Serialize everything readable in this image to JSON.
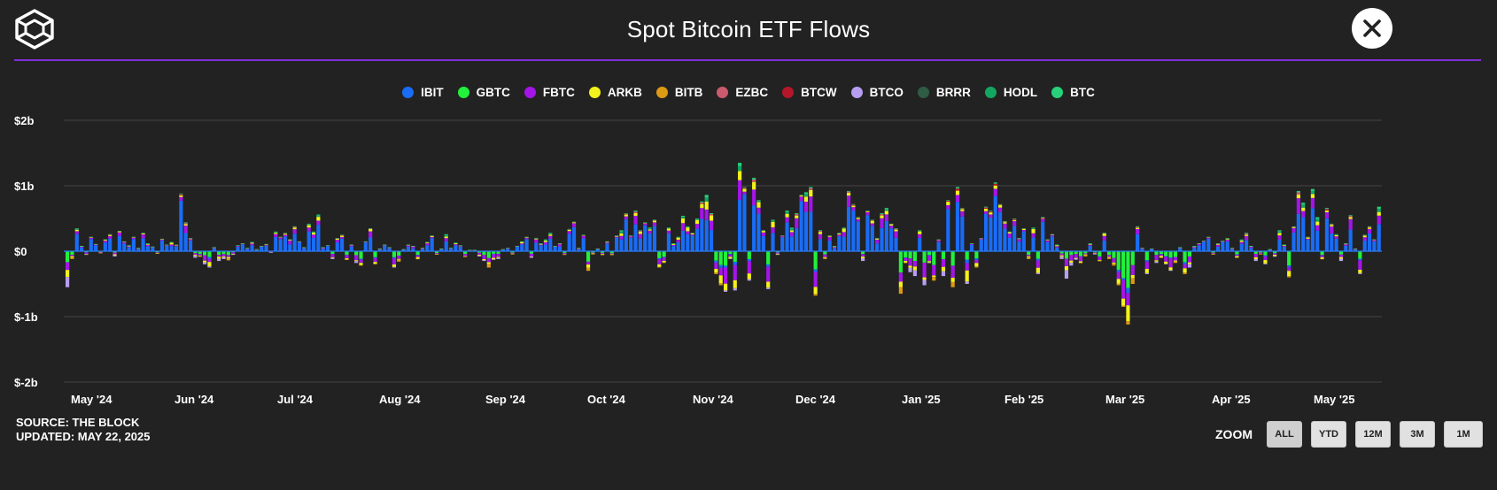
{
  "header": {
    "title": "Spot Bitcoin ETF Flows",
    "logo_icon": "the-block-cube-logo",
    "close_icon": "close-icon"
  },
  "footer": {
    "source": "SOURCE: THE BLOCK",
    "updated": "UPDATED: MAY 22, 2025"
  },
  "zoom": {
    "label": "ZOOM",
    "buttons": [
      "ALL",
      "YTD",
      "12M",
      "3M",
      "1M"
    ],
    "selected": "ALL"
  },
  "colors": {
    "background": "#222222",
    "divider": "#7e2fd6",
    "grid": "#444444",
    "zero_line": "#2d7df6"
  },
  "chart_data": {
    "type": "bar",
    "stacked": true,
    "title": "Spot Bitcoin ETF Flows",
    "xlabel": "",
    "ylabel": "",
    "unit": "USD billions",
    "ylim": [
      -2,
      2
    ],
    "yticks": [
      {
        "value": 2,
        "label": "$2b"
      },
      {
        "value": 1,
        "label": "$1b"
      },
      {
        "value": 0,
        "label": "$0"
      },
      {
        "value": -1,
        "label": "$-1b"
      },
      {
        "value": -2,
        "label": "$-2b"
      }
    ],
    "xticks": [
      "May '24",
      "Jun '24",
      "Jul '24",
      "Aug '24",
      "Sep '24",
      "Oct '24",
      "Nov '24",
      "Dec '24",
      "Jan '25",
      "Feb '25",
      "Mar '25",
      "Apr '25",
      "May '25"
    ],
    "legend_position": "top-center",
    "series": [
      {
        "name": "IBIT",
        "color": "#1a6cf5"
      },
      {
        "name": "GBTC",
        "color": "#21f03c"
      },
      {
        "name": "FBTC",
        "color": "#a514e8"
      },
      {
        "name": "ARKB",
        "color": "#f2f21c"
      },
      {
        "name": "BITB",
        "color": "#dd9a14"
      },
      {
        "name": "EZBC",
        "color": "#cc5a6e"
      },
      {
        "name": "BTCW",
        "color": "#b5162a"
      },
      {
        "name": "BTCO",
        "color": "#b79ef0"
      },
      {
        "name": "BRRR",
        "color": "#2f5c44"
      },
      {
        "name": "HODL",
        "color": "#14a661"
      },
      {
        "name": "BTC",
        "color": "#27d17a"
      }
    ],
    "spans": [
      {
        "start": 0,
        "end": 22,
        "range": [
          -0.55,
          0.38
        ]
      },
      {
        "start": 22,
        "end": 44,
        "range": [
          -0.25,
          0.88
        ]
      },
      {
        "start": 44,
        "end": 66,
        "range": [
          -0.25,
          0.58
        ]
      },
      {
        "start": 66,
        "end": 88,
        "range": [
          -0.3,
          0.28
        ]
      },
      {
        "start": 88,
        "end": 110,
        "range": [
          -0.25,
          0.45
        ]
      },
      {
        "start": 110,
        "end": 132,
        "range": [
          -0.3,
          0.62
        ]
      },
      {
        "start": 132,
        "end": 154,
        "range": [
          -0.65,
          1.35
        ]
      },
      {
        "start": 154,
        "end": 176,
        "range": [
          -0.7,
          0.98
        ]
      },
      {
        "start": 176,
        "end": 198,
        "range": [
          -0.65,
          1.05
        ]
      },
      {
        "start": 198,
        "end": 220,
        "range": [
          -0.5,
          0.58
        ]
      },
      {
        "start": 220,
        "end": 242,
        "range": [
          -1.12,
          0.38
        ]
      },
      {
        "start": 242,
        "end": 264,
        "range": [
          -0.45,
          0.95
        ]
      },
      {
        "start": 264,
        "end": 278,
        "range": [
          -0.4,
          0.68
        ]
      }
    ],
    "daily_net_flows": [
      -0.55,
      -0.12,
      0.35,
      0.08,
      -0.05,
      0.22,
      0.11,
      -0.03,
      0.18,
      0.26,
      -0.08,
      0.31,
      0.15,
      0.09,
      0.22,
      0.05,
      0.28,
      0.12,
      0.07,
      -0.04,
      0.19,
      0.1,
      0.14,
      0.1,
      0.88,
      0.44,
      0.2,
      -0.1,
      -0.08,
      -0.2,
      -0.25,
      0.06,
      -0.15,
      -0.12,
      -0.14,
      -0.05,
      0.09,
      0.12,
      0.05,
      0.14,
      0.03,
      0.08,
      0.11,
      -0.02,
      0.3,
      0.22,
      0.28,
      0.18,
      0.38,
      0.15,
      0.06,
      0.42,
      0.3,
      0.56,
      0.06,
      0.09,
      -0.12,
      0.2,
      0.25,
      -0.13,
      0.1,
      -0.18,
      -0.22,
      0.15,
      0.35,
      -0.2,
      0.04,
      0.1,
      0.06,
      -0.25,
      -0.16,
      0.03,
      0.1,
      0.08,
      -0.12,
      0.05,
      0.14,
      0.24,
      -0.05,
      0.04,
      0.26,
      0.05,
      0.13,
      0.09,
      -0.09,
      0.02,
      0.02,
      -0.08,
      -0.15,
      -0.25,
      -0.13,
      -0.12,
      0.03,
      0.05,
      -0.05,
      0.08,
      0.15,
      0.22,
      -0.1,
      0.2,
      0.12,
      0.18,
      0.28,
      0.08,
      0.12,
      -0.05,
      0.34,
      0.45,
      0.05,
      0.25,
      -0.3,
      -0.05,
      0.04,
      -0.06,
      0.15,
      -0.06,
      0.24,
      0.32,
      0.58,
      0.24,
      0.62,
      0.32,
      0.44,
      0.36,
      0.48,
      -0.25,
      -0.18,
      0.36,
      0.12,
      0.22,
      0.54,
      0.38,
      0.28,
      0.5,
      0.76,
      0.86,
      0.58,
      -0.35,
      -0.52,
      -0.62,
      -0.12,
      -0.6,
      1.35,
      0.98,
      -0.45,
      1.12,
      0.78,
      0.32,
      -0.58,
      0.48,
      -0.05,
      0.24,
      0.62,
      0.36,
      0.58,
      0.86,
      0.9,
      0.98,
      -0.68,
      0.32,
      -0.12,
      0.24,
      0.08,
      0.28,
      0.36,
      0.92,
      0.72,
      0.52,
      -0.15,
      0.62,
      0.48,
      0.2,
      0.58,
      0.66,
      0.42,
      0.35,
      -0.65,
      -0.18,
      -0.32,
      -0.38,
      0.32,
      -0.52,
      -0.18,
      -0.45,
      0.18,
      -0.38,
      0.78,
      -0.55,
      0.98,
      0.66,
      -0.5,
      0.12,
      -0.25,
      0.2,
      0.68,
      0.62,
      1.05,
      0.72,
      0.46,
      0.3,
      0.5,
      0.2,
      0.35,
      -0.12,
      0.36,
      -0.35,
      0.52,
      0.18,
      0.26,
      0.1,
      -0.12,
      -0.42,
      -0.22,
      -0.13,
      -0.18,
      -0.08,
      0.12,
      -0.05,
      -0.15,
      0.28,
      -0.12,
      -0.22,
      -0.52,
      -0.85,
      -1.12,
      -0.5,
      0.38,
      0.05,
      -0.35,
      0.04,
      -0.18,
      -0.1,
      -0.2,
      -0.3,
      -0.18,
      0.06,
      -0.35,
      -0.25,
      0.08,
      0.12,
      0.16,
      0.22,
      -0.05,
      0.12,
      0.16,
      0.2,
      0.05,
      -0.1,
      0.18,
      0.28,
      0.08,
      -0.15,
      -0.05,
      -0.2,
      0.03,
      -0.08,
      0.32,
      0.1,
      -0.4,
      0.38,
      0.92,
      0.74,
      0.22,
      0.95,
      0.52,
      -0.12,
      0.66,
      0.42,
      0.26,
      -0.15,
      0.12,
      0.55,
      0.04,
      -0.35,
      0.25,
      0.38,
      0.18,
      0.68
    ]
  }
}
